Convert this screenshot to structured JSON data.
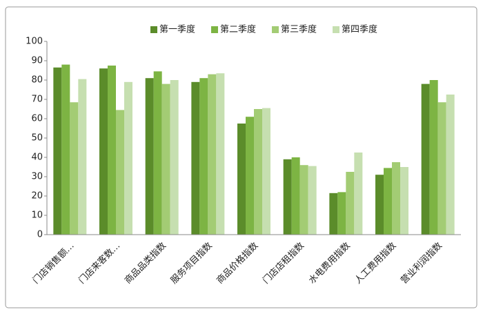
{
  "chart_data": {
    "type": "bar",
    "categories": [
      "门店销售额…",
      "门店来客数…",
      "商品品类指数",
      "服务项目指数",
      "商品价格指数",
      "门店店租指数",
      "水电费用指数",
      "人工费用指数",
      "营业利润指数"
    ],
    "series": [
      {
        "name": "第一季度",
        "color": "#5b8c2a",
        "values": [
          86.5,
          86,
          81,
          79,
          57.5,
          39,
          21.5,
          31,
          78
        ]
      },
      {
        "name": "第二季度",
        "color": "#7db443",
        "values": [
          88,
          87.5,
          84.5,
          81,
          61,
          40,
          22,
          34.5,
          80
        ]
      },
      {
        "name": "第三季度",
        "color": "#a3cc74",
        "values": [
          68.5,
          64.5,
          78,
          83,
          65,
          36,
          32.5,
          37.5,
          68.5
        ]
      },
      {
        "name": "第四季度",
        "color": "#c6dfb0",
        "values": [
          80.5,
          79,
          80,
          83.5,
          65.5,
          35.5,
          42.5,
          35,
          72.5
        ]
      }
    ],
    "ylim": [
      0,
      100
    ],
    "yticks": [
      0,
      10,
      20,
      30,
      40,
      50,
      60,
      70,
      80,
      90,
      100
    ],
    "grid": false,
    "legend": "top"
  }
}
